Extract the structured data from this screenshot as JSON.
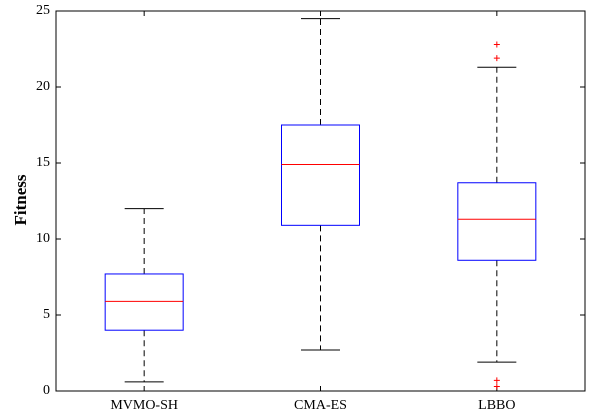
{
  "chart_data": {
    "type": "box",
    "ylabel": "Fitness",
    "categories": [
      "MVMO-SH",
      "CMA-ES",
      "LBBO"
    ],
    "boxes": [
      {
        "whisker_low": 0.6,
        "q1": 4.0,
        "median": 5.9,
        "q3": 7.7,
        "whisker_high": 12.0,
        "outliers": []
      },
      {
        "whisker_low": 2.7,
        "q1": 10.9,
        "median": 14.9,
        "q3": 17.5,
        "whisker_high": 24.5,
        "outliers": []
      },
      {
        "whisker_low": 1.9,
        "q1": 8.6,
        "median": 11.3,
        "q3": 13.7,
        "whisker_high": 21.3,
        "outliers": [
          22.8,
          21.9,
          0.7,
          0.3
        ]
      }
    ],
    "ylim": [
      0,
      25
    ],
    "yticks": [
      0,
      5,
      10,
      15,
      20,
      25
    ],
    "box_color": "#0000ff",
    "median_color": "#ff0000",
    "whisker_color": "#000000",
    "outlier_color": "#ff0000"
  }
}
